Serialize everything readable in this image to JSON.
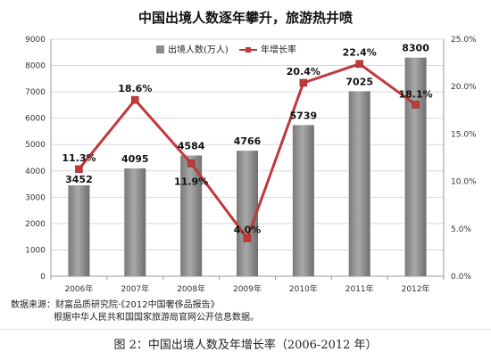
{
  "chart_data": {
    "type": "bar",
    "title": "中国出境人数逐年攀升，旅游热井喷",
    "categories": [
      "2006年",
      "2007年",
      "2008年",
      "2009年",
      "2010年",
      "2011年",
      "2012年"
    ],
    "series": [
      {
        "name": "出境人数(万人)",
        "type": "bar",
        "axis": "left",
        "values": [
          3452,
          4095,
          4584,
          4766,
          5739,
          7025,
          8300
        ],
        "labels": [
          "3452",
          "4095",
          "4584",
          "4766",
          "5739",
          "7025",
          "8300"
        ],
        "color": "#8c8c8c"
      },
      {
        "name": "年增长率",
        "type": "line",
        "axis": "right",
        "values": [
          11.3,
          18.6,
          11.9,
          4.0,
          20.4,
          22.4,
          18.1
        ],
        "labels": [
          "11.3%",
          "18.6%",
          "11.9%",
          "4.0%",
          "20.4%",
          "22.4%",
          "18.1%"
        ],
        "color": "#c0393b"
      }
    ],
    "y_left": {
      "min": 0,
      "max": 9000,
      "ticks": [
        "0",
        "1000",
        "2000",
        "3000",
        "4000",
        "5000",
        "6000",
        "7000",
        "8000",
        "9000"
      ]
    },
    "y_right": {
      "min": 0,
      "max": 25,
      "ticks": [
        "0.0%",
        "5.0%",
        "10.0%",
        "15.0%",
        "20.0%",
        "25.0%"
      ]
    },
    "legend_position": "top-center",
    "grid": true
  },
  "source": {
    "line1": "数据来源：财富品质研究院·《2012中国奢侈品报告》",
    "line2": "根据中华人民共和国国家旅游局官网公开信息数据。"
  },
  "caption": "图 2：中国出境人数及年增长率（2006-2012 年）"
}
